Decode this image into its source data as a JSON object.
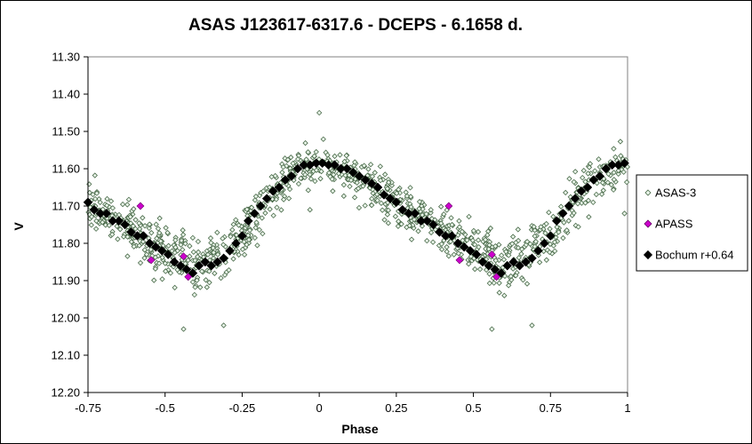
{
  "chart_data": {
    "type": "scatter",
    "title": "ASAS J123617-6317.6  - DCEPS - 6.1658 d.",
    "xlabel": "Phase",
    "ylabel": "V",
    "xlim": [
      -0.75,
      1
    ],
    "ylim": [
      11.3,
      12.2
    ],
    "y_inverted": true,
    "xticks": [
      "-0.75",
      "-0.5",
      "-0.25",
      "0",
      "0.25",
      "0.5",
      "0.75",
      "1"
    ],
    "xtick_values": [
      -0.75,
      -0.5,
      -0.25,
      0,
      0.25,
      0.5,
      0.75,
      1
    ],
    "yticks": [
      "11.30",
      "11.40",
      "11.50",
      "11.60",
      "11.70",
      "11.80",
      "11.90",
      "12.00",
      "12.10",
      "12.20"
    ],
    "ytick_values": [
      11.3,
      11.4,
      11.5,
      11.6,
      11.7,
      11.8,
      11.9,
      12.0,
      12.1,
      12.2
    ],
    "grid": false,
    "legend_position": "right",
    "series": [
      {
        "name": "ASAS-3",
        "marker": "open-diamond",
        "color": "#4a6a4a",
        "fill": "#e8f4e8",
        "note_count": 1100,
        "envelope": {
          "phase": [
            -0.75,
            -0.6,
            -0.5,
            -0.4,
            -0.3,
            -0.2,
            -0.1,
            0.0,
            0.1,
            0.2,
            0.3,
            0.4,
            0.5,
            0.6,
            0.7,
            0.8,
            0.9,
            1.0
          ],
          "mean_v": [
            11.7,
            11.76,
            11.82,
            11.86,
            11.82,
            11.72,
            11.62,
            11.58,
            11.61,
            11.66,
            11.72,
            11.77,
            11.82,
            11.86,
            11.82,
            11.72,
            11.62,
            11.58
          ],
          "scatter": [
            0.06,
            0.07,
            0.07,
            0.08,
            0.08,
            0.07,
            0.06,
            0.06,
            0.06,
            0.06,
            0.06,
            0.07,
            0.07,
            0.08,
            0.08,
            0.07,
            0.06,
            0.06
          ]
        },
        "outliers": [
          {
            "x": -0.44,
            "y": 12.03
          },
          {
            "x": 0.56,
            "y": 12.03
          },
          {
            "x": 0.69,
            "y": 12.02
          },
          {
            "x": -0.31,
            "y": 12.02
          },
          {
            "x": 0.0,
            "y": 11.45
          },
          {
            "x": -0.03,
            "y": 11.71
          },
          {
            "x": 0.99,
            "y": 11.72
          }
        ]
      },
      {
        "name": "APASS",
        "marker": "diamond",
        "color": "#cc00cc",
        "points": [
          {
            "x": -0.58,
            "y": 11.7
          },
          {
            "x": -0.545,
            "y": 11.845
          },
          {
            "x": -0.44,
            "y": 11.835
          },
          {
            "x": -0.425,
            "y": 11.89
          },
          {
            "x": 0.42,
            "y": 11.7
          },
          {
            "x": 0.455,
            "y": 11.845
          },
          {
            "x": 0.56,
            "y": 11.83
          },
          {
            "x": 0.575,
            "y": 11.89
          }
        ]
      },
      {
        "name": "Bochum r+0.64",
        "marker": "diamond",
        "color": "#000000",
        "points": [
          {
            "x": -0.75,
            "y": 11.69
          },
          {
            "x": -0.73,
            "y": 11.71
          },
          {
            "x": -0.71,
            "y": 11.72
          },
          {
            "x": -0.69,
            "y": 11.72
          },
          {
            "x": -0.67,
            "y": 11.74
          },
          {
            "x": -0.65,
            "y": 11.74
          },
          {
            "x": -0.63,
            "y": 11.75
          },
          {
            "x": -0.61,
            "y": 11.77
          },
          {
            "x": -0.59,
            "y": 11.78
          },
          {
            "x": -0.57,
            "y": 11.78
          },
          {
            "x": -0.55,
            "y": 11.8
          },
          {
            "x": -0.53,
            "y": 11.81
          },
          {
            "x": -0.51,
            "y": 11.82
          },
          {
            "x": -0.49,
            "y": 11.83
          },
          {
            "x": -0.47,
            "y": 11.85
          },
          {
            "x": -0.45,
            "y": 11.86
          },
          {
            "x": -0.43,
            "y": 11.87
          },
          {
            "x": -0.41,
            "y": 11.88
          },
          {
            "x": -0.39,
            "y": 11.86
          },
          {
            "x": -0.37,
            "y": 11.85
          },
          {
            "x": -0.35,
            "y": 11.86
          },
          {
            "x": -0.33,
            "y": 11.85
          },
          {
            "x": -0.31,
            "y": 11.84
          },
          {
            "x": -0.29,
            "y": 11.82
          },
          {
            "x": -0.27,
            "y": 11.8
          },
          {
            "x": -0.25,
            "y": 11.78
          },
          {
            "x": -0.23,
            "y": 11.74
          },
          {
            "x": -0.21,
            "y": 11.72
          },
          {
            "x": -0.19,
            "y": 11.7
          },
          {
            "x": -0.17,
            "y": 11.68
          },
          {
            "x": -0.15,
            "y": 11.66
          },
          {
            "x": -0.13,
            "y": 11.65
          },
          {
            "x": -0.11,
            "y": 11.63
          },
          {
            "x": -0.09,
            "y": 11.62
          },
          {
            "x": -0.07,
            "y": 11.6
          },
          {
            "x": -0.05,
            "y": 11.59
          },
          {
            "x": -0.03,
            "y": 11.59
          },
          {
            "x": -0.01,
            "y": 11.585
          },
          {
            "x": 0.01,
            "y": 11.585
          },
          {
            "x": 0.03,
            "y": 11.59
          },
          {
            "x": 0.05,
            "y": 11.59
          },
          {
            "x": 0.07,
            "y": 11.6
          },
          {
            "x": 0.09,
            "y": 11.6
          },
          {
            "x": 0.11,
            "y": 11.61
          },
          {
            "x": 0.13,
            "y": 11.62
          },
          {
            "x": 0.15,
            "y": 11.63
          },
          {
            "x": 0.17,
            "y": 11.64
          },
          {
            "x": 0.19,
            "y": 11.65
          },
          {
            "x": 0.21,
            "y": 11.67
          },
          {
            "x": 0.23,
            "y": 11.68
          },
          {
            "x": 0.25,
            "y": 11.69
          },
          {
            "x": 0.27,
            "y": 11.71
          },
          {
            "x": 0.29,
            "y": 11.72
          },
          {
            "x": 0.31,
            "y": 11.72
          },
          {
            "x": 0.33,
            "y": 11.74
          },
          {
            "x": 0.35,
            "y": 11.74
          },
          {
            "x": 0.37,
            "y": 11.75
          },
          {
            "x": 0.39,
            "y": 11.77
          },
          {
            "x": 0.41,
            "y": 11.78
          },
          {
            "x": 0.43,
            "y": 11.78
          },
          {
            "x": 0.45,
            "y": 11.8
          },
          {
            "x": 0.47,
            "y": 11.81
          },
          {
            "x": 0.49,
            "y": 11.82
          },
          {
            "x": 0.51,
            "y": 11.83
          },
          {
            "x": 0.53,
            "y": 11.85
          },
          {
            "x": 0.55,
            "y": 11.86
          },
          {
            "x": 0.57,
            "y": 11.87
          },
          {
            "x": 0.59,
            "y": 11.88
          },
          {
            "x": 0.61,
            "y": 11.86
          },
          {
            "x": 0.63,
            "y": 11.85
          },
          {
            "x": 0.65,
            "y": 11.86
          },
          {
            "x": 0.67,
            "y": 11.85
          },
          {
            "x": 0.69,
            "y": 11.84
          },
          {
            "x": 0.71,
            "y": 11.82
          },
          {
            "x": 0.73,
            "y": 11.8
          },
          {
            "x": 0.75,
            "y": 11.78
          },
          {
            "x": 0.77,
            "y": 11.74
          },
          {
            "x": 0.79,
            "y": 11.72
          },
          {
            "x": 0.81,
            "y": 11.7
          },
          {
            "x": 0.83,
            "y": 11.68
          },
          {
            "x": 0.85,
            "y": 11.66
          },
          {
            "x": 0.87,
            "y": 11.65
          },
          {
            "x": 0.89,
            "y": 11.63
          },
          {
            "x": 0.91,
            "y": 11.62
          },
          {
            "x": 0.93,
            "y": 11.6
          },
          {
            "x": 0.95,
            "y": 11.59
          },
          {
            "x": 0.97,
            "y": 11.59
          },
          {
            "x": 0.99,
            "y": 11.585
          }
        ]
      }
    ]
  }
}
